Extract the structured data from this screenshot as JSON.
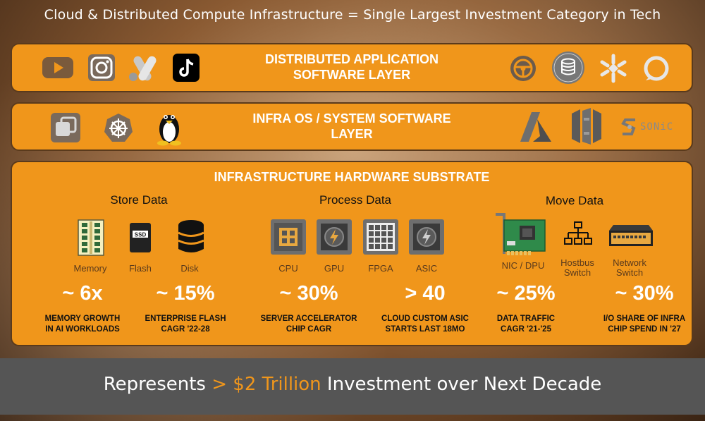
{
  "header": {
    "title": "Cloud & Distributed Compute Infrastructure  =  Single Largest Investment Category in Tech"
  },
  "layers": {
    "app": {
      "title_line1": "DISTRIBUTED APPLICATION",
      "title_line2": "SOFTWARE LAYER",
      "left_icons": [
        "youtube-icon",
        "instagram-icon",
        "google-ads-icon",
        "tiktok-icon"
      ],
      "right_icons": [
        "steering-wheel-icon",
        "oracle-database-icon",
        "snowflake-icon",
        "alexa-icon"
      ]
    },
    "os": {
      "title_line1": "INFRA OS / SYSTEM SOFTWARE",
      "title_line2": "LAYER",
      "left_icons": [
        "vmware-icon",
        "kubernetes-icon",
        "linux-tux-icon"
      ],
      "right_icons": [
        "azure-icon",
        "aws-icon",
        "sonic-icon"
      ],
      "sonic_label": "SONiC"
    },
    "hardware": {
      "title": "INFRASTRUCTURE HARDWARE SUBSTRATE",
      "columns": [
        {
          "heading": "Store Data",
          "items": [
            "Memory",
            "Flash",
            "Disk"
          ]
        },
        {
          "heading": "Process Data",
          "items": [
            "CPU",
            "GPU",
            "FPGA",
            "ASIC"
          ]
        },
        {
          "heading": "Move Data",
          "items": [
            "NIC / DPU",
            "Hostbus Switch",
            "Network Switch"
          ]
        }
      ],
      "ssd_label": "SSD",
      "metrics": [
        {
          "value": "~ 6x",
          "line1": "MEMORY GROWTH",
          "line2": "IN AI WORKLOADS"
        },
        {
          "value": "~ 15%",
          "line1": "ENTERPRISE FLASH",
          "line2": "CAGR '22-28"
        },
        {
          "value": "~ 30%",
          "line1": "SERVER ACCELERATOR",
          "line2": "CHIP CAGR"
        },
        {
          "value": "> 40",
          "line1": "CLOUD CUSTOM ASIC",
          "line2": "STARTS LAST 18MO"
        },
        {
          "value": "~ 25%",
          "line1": "DATA TRAFFIC",
          "line2": "CAGR '21-'25"
        },
        {
          "value": "~ 30%",
          "line1": "I/O SHARE OF INFRA",
          "line2": "CHIP SPEND IN '27"
        }
      ]
    }
  },
  "footer": {
    "prefix": "Represents ",
    "highlight": "> $2 Trillion",
    "suffix": " Investment over Next Decade"
  },
  "colors": {
    "band": "#f0961b",
    "band_border": "#5a3a1c",
    "footer_bg": "#555555",
    "highlight": "#f0961b"
  }
}
